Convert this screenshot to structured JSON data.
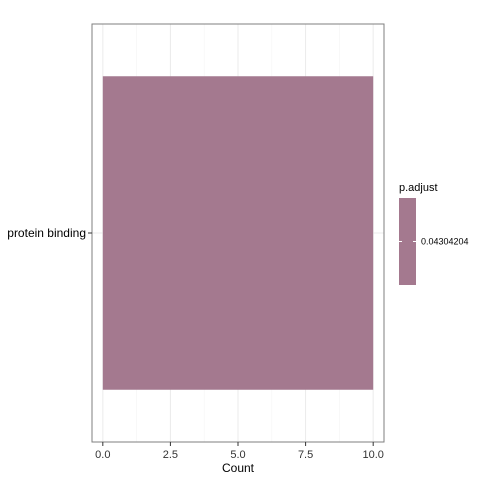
{
  "chart_data": {
    "type": "bar",
    "orientation": "horizontal",
    "categories": [
      "protein binding"
    ],
    "values": [
      10
    ],
    "xlabel": "Count",
    "ylabel": "",
    "xlim": [
      -0.4,
      10.4
    ],
    "xticks": [
      0.0,
      2.5,
      5.0,
      7.5,
      10.0
    ],
    "xtick_labels": [
      "0.0",
      "2.5",
      "5.0",
      "7.5",
      "10.0"
    ],
    "grid": true,
    "bar_color": "#a4798f",
    "legend": {
      "title": "p.adjust",
      "placement": "right",
      "entries": [
        {
          "label": "0.04304204",
          "color": "#a4798f"
        }
      ]
    }
  }
}
